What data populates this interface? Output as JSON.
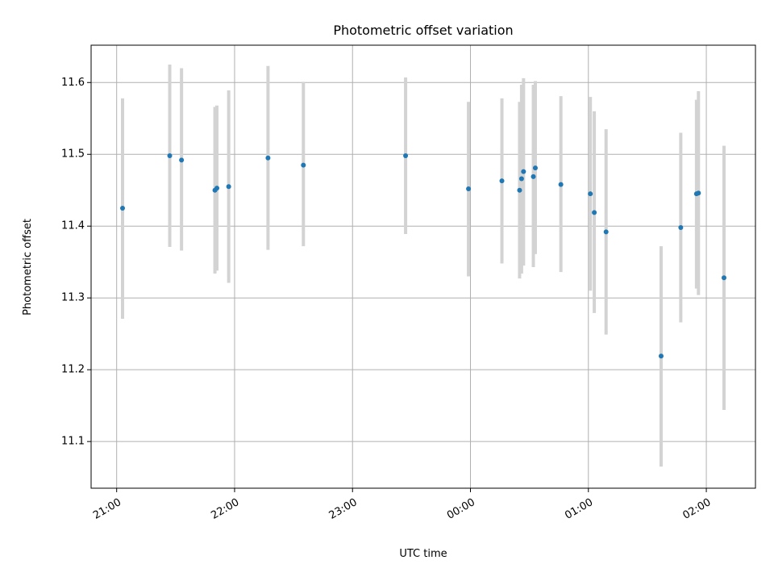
{
  "chart_data": {
    "type": "scatter",
    "title": "Photometric offset variation",
    "xlabel": "UTC time",
    "ylabel": "Photometric offset",
    "x_ticks": [
      "21:00",
      "22:00",
      "23:00",
      "00:00",
      "01:00",
      "02:00"
    ],
    "y_ticks": [
      "11.1",
      "11.2",
      "11.3",
      "11.4",
      "11.5",
      "11.6"
    ],
    "xlim": [
      "20:47",
      "02:25"
    ],
    "ylim": [
      11.035,
      11.652
    ],
    "grid": true,
    "colors": {
      "point": "#1f77b4",
      "errorbar": "#d3d3d3",
      "grid": "#b0b0b0"
    },
    "series": [
      {
        "points": [
          {
            "x": "21:03",
            "y": 11.425,
            "ylo": 11.271,
            "yhi": 11.578
          },
          {
            "x": "21:27",
            "y": 11.498,
            "ylo": 11.371,
            "yhi": 11.625
          },
          {
            "x": "21:33",
            "y": 11.492,
            "ylo": 11.366,
            "yhi": 11.62
          },
          {
            "x": "21:50",
            "y": 11.45,
            "ylo": 11.334,
            "yhi": 11.566
          },
          {
            "x": "21:51",
            "y": 11.453,
            "ylo": 11.338,
            "yhi": 11.568
          },
          {
            "x": "21:57",
            "y": 11.455,
            "ylo": 11.321,
            "yhi": 11.589
          },
          {
            "x": "22:17",
            "y": 11.495,
            "ylo": 11.367,
            "yhi": 11.623
          },
          {
            "x": "22:35",
            "y": 11.485,
            "ylo": 11.372,
            "yhi": 11.601
          },
          {
            "x": "23:27",
            "y": 11.498,
            "ylo": 11.389,
            "yhi": 11.607
          },
          {
            "x": "23:59",
            "y": 11.452,
            "ylo": 11.33,
            "yhi": 11.573
          },
          {
            "x": "00:16",
            "y": 11.463,
            "ylo": 11.348,
            "yhi": 11.578
          },
          {
            "x": "00:25",
            "y": 11.45,
            "ylo": 11.327,
            "yhi": 11.573
          },
          {
            "x": "00:26",
            "y": 11.466,
            "ylo": 11.334,
            "yhi": 11.597
          },
          {
            "x": "00:27",
            "y": 11.476,
            "ylo": 11.345,
            "yhi": 11.606
          },
          {
            "x": "00:32",
            "y": 11.469,
            "ylo": 11.343,
            "yhi": 11.597
          },
          {
            "x": "00:33",
            "y": 11.481,
            "ylo": 11.361,
            "yhi": 11.602
          },
          {
            "x": "00:46",
            "y": 11.458,
            "ylo": 11.336,
            "yhi": 11.581
          },
          {
            "x": "01:01",
            "y": 11.445,
            "ylo": 11.31,
            "yhi": 11.58
          },
          {
            "x": "01:03",
            "y": 11.419,
            "ylo": 11.279,
            "yhi": 11.56
          },
          {
            "x": "01:09",
            "y": 11.392,
            "ylo": 11.249,
            "yhi": 11.535
          },
          {
            "x": "01:37",
            "y": 11.219,
            "ylo": 11.065,
            "yhi": 11.372
          },
          {
            "x": "01:47",
            "y": 11.398,
            "ylo": 11.266,
            "yhi": 11.53
          },
          {
            "x": "01:55",
            "y": 11.445,
            "ylo": 11.313,
            "yhi": 11.576
          },
          {
            "x": "01:56",
            "y": 11.446,
            "ylo": 11.304,
            "yhi": 11.588
          },
          {
            "x": "02:09",
            "y": 11.328,
            "ylo": 11.144,
            "yhi": 11.512
          }
        ]
      }
    ]
  }
}
